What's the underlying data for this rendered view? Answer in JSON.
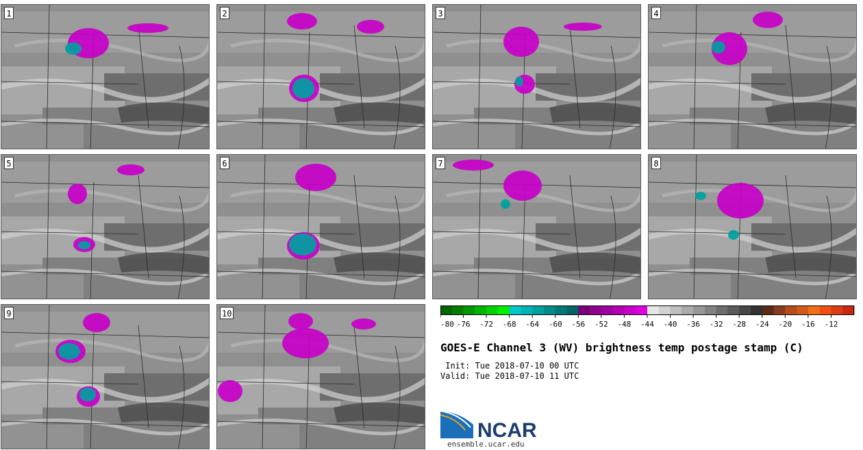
{
  "panels": [
    {
      "label": "1"
    },
    {
      "label": "2"
    },
    {
      "label": "3"
    },
    {
      "label": "4"
    },
    {
      "label": "5"
    },
    {
      "label": "6"
    },
    {
      "label": "7"
    },
    {
      "label": "8"
    },
    {
      "label": "9"
    },
    {
      "label": "10"
    }
  ],
  "colorbar": {
    "ticks": [
      "-80",
      "-76",
      "-72",
      "-68",
      "-64",
      "-60",
      "-56",
      "-52",
      "-48",
      "-44",
      "-40",
      "-36",
      "-32",
      "-28",
      "-24",
      "-20",
      "-16",
      "-12"
    ],
    "colors": [
      "#006400",
      "#007d00",
      "#009600",
      "#00b400",
      "#00d200",
      "#00f000",
      "#00c8c8",
      "#00b4b4",
      "#00a0a0",
      "#008c8c",
      "#007878",
      "#006464",
      "#780078",
      "#8c008c",
      "#a000a0",
      "#b400b4",
      "#c800c8",
      "#dc00dc",
      "#e6e6e6",
      "#d2d2d2",
      "#bebebe",
      "#aaaaaa",
      "#969696",
      "#828282",
      "#6e6e6e",
      "#5a5a5a",
      "#464646",
      "#323232",
      "#5a2a1a",
      "#8c3c1e",
      "#b44c1c",
      "#d25a1a",
      "#f06e14",
      "#f05014",
      "#dc3c14",
      "#c82814"
    ]
  },
  "title": "GOES-E Channel 3 (WV) brightness temp postage stamp (C)",
  "init_line": " Init: Tue 2018-07-10 00 UTC",
  "valid_line": "Valid: Tue 2018-07-10 11 UTC",
  "logo": {
    "text": "NCAR",
    "url": "ensemble.ucar.edu"
  }
}
